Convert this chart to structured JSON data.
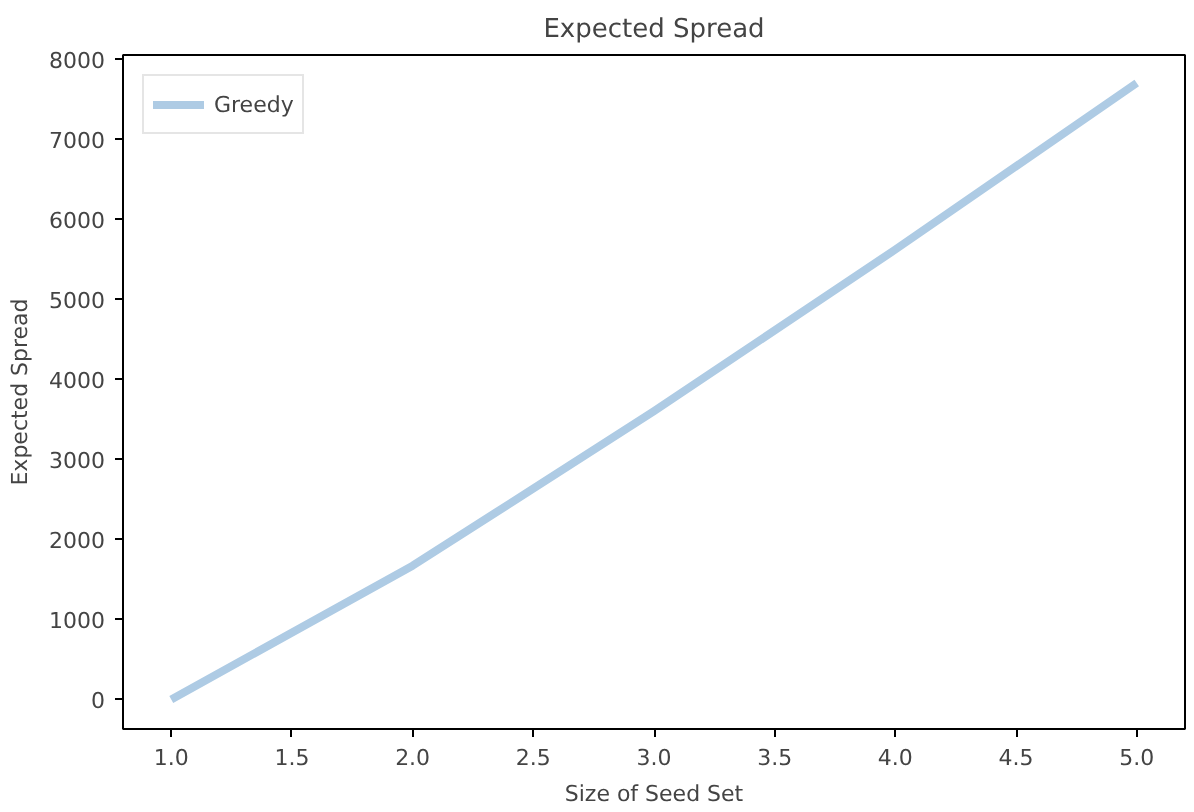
{
  "chart_data": {
    "type": "line",
    "title": "Expected Spread",
    "xlabel": "Size of Seed Set",
    "ylabel": "Expected Spread",
    "x": [
      1,
      2,
      3,
      4,
      5
    ],
    "series": [
      {
        "name": "Greedy",
        "color": "#aecbe4",
        "values": [
          0,
          1670,
          3600,
          5620,
          7700
        ]
      }
    ],
    "xlim": [
      0.8,
      5.2
    ],
    "ylim": [
      -370,
      8050
    ],
    "xticks": [
      {
        "value": 1,
        "label": "1.0"
      },
      {
        "value": 1.5,
        "label": "1.5"
      },
      {
        "value": 2,
        "label": "2.0"
      },
      {
        "value": 2.5,
        "label": "2.5"
      },
      {
        "value": 3,
        "label": "3.0"
      },
      {
        "value": 3.5,
        "label": "3.5"
      },
      {
        "value": 4,
        "label": "4.0"
      },
      {
        "value": 4.5,
        "label": "4.5"
      },
      {
        "value": 5,
        "label": "5.0"
      }
    ],
    "yticks": [
      0,
      1000,
      2000,
      3000,
      4000,
      5000,
      6000,
      7000,
      8000
    ],
    "grid": false,
    "legend": "top left",
    "line_style": "solid"
  }
}
